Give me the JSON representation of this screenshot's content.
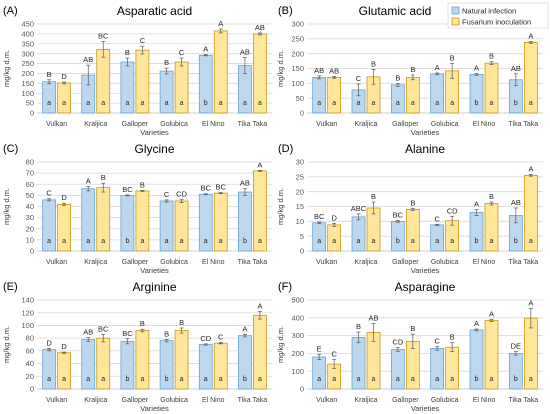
{
  "legend": {
    "entries": [
      {
        "name": "Natural infection",
        "color": "#BDD7EE",
        "border": "#5B9BD5"
      },
      {
        "name": "Fusarium inoculation",
        "color": "#FFE699",
        "border": "#BF9000"
      }
    ]
  },
  "chart_data": [
    {
      "panel_label": "(A)",
      "type": "bar",
      "title": "Asparatic acid",
      "xlabel": "Varieties",
      "ylabel": "mg/kg d.m.",
      "ylim": [
        0,
        450
      ],
      "yticks": [
        0,
        50,
        100,
        150,
        200,
        250,
        300,
        350,
        400,
        450
      ],
      "grid": true,
      "categories": [
        "Vulkan",
        "Kraljica",
        "Galloper",
        "Golubica",
        "El Nino",
        "Tika Taka"
      ],
      "series": [
        {
          "values": [
            158,
            192,
            258,
            212,
            292,
            240
          ],
          "errors": [
            10,
            50,
            20,
            15,
            3,
            40
          ],
          "letters_upper": [
            "B",
            "AB",
            "B",
            "B",
            "A",
            "AB"
          ],
          "letters_lower": [
            "a",
            "a",
            "a",
            "a",
            "b",
            "a"
          ]
        },
        {
          "values": [
            152,
            322,
            318,
            258,
            415,
            400
          ],
          "errors": [
            5,
            40,
            20,
            20,
            10,
            5
          ],
          "letters_upper": [
            "D",
            "BC",
            "C",
            "C",
            "A",
            "AB"
          ],
          "letters_lower": [
            "a",
            "a",
            "a",
            "a",
            "a",
            "a"
          ]
        }
      ]
    },
    {
      "panel_label": "(B)",
      "type": "bar",
      "title": "Glutamic acid",
      "xlabel": "Varieties",
      "ylabel": "mg/kg d.m.",
      "ylim": [
        0,
        300
      ],
      "yticks": [
        0,
        50,
        100,
        150,
        200,
        250,
        300
      ],
      "grid": true,
      "categories": [
        "Vulkan",
        "Kraljica",
        "Galloper",
        "Golubica",
        "El Nino",
        "Tika Taka"
      ],
      "series": [
        {
          "values": [
            120,
            78,
            95,
            132,
            130,
            112
          ],
          "errors": [
            5,
            20,
            5,
            3,
            3,
            20
          ],
          "letters_upper": [
            "AB",
            "C",
            "B",
            "A",
            "A",
            "AB"
          ],
          "letters_lower": [
            "a",
            "a",
            "a",
            "a",
            "b",
            "b"
          ]
        },
        {
          "values": [
            120,
            122,
            120,
            142,
            168,
            238
          ],
          "errors": [
            3,
            25,
            8,
            25,
            5,
            3
          ],
          "letters_upper": [
            "AB",
            "B",
            "B",
            "B",
            "B",
            "A"
          ],
          "letters_lower": [
            "a",
            "a",
            "a",
            "a",
            "a",
            "a"
          ]
        }
      ]
    },
    {
      "panel_label": "(C)",
      "type": "bar",
      "title": "Glycine",
      "xlabel": "Varieties",
      "ylabel": "mg/kg d.m.",
      "ylim": [
        0,
        80
      ],
      "yticks": [
        0,
        10,
        20,
        30,
        40,
        50,
        60,
        70,
        80
      ],
      "grid": true,
      "categories": [
        "Vulkan",
        "Kraljica",
        "Galloper",
        "Golubica",
        "El Nino",
        "Tika Taka"
      ],
      "series": [
        {
          "values": [
            46,
            56,
            50,
            45,
            51,
            53
          ],
          "errors": [
            1,
            2,
            0.5,
            1,
            0.5,
            3
          ],
          "letters_upper": [
            "C",
            "A",
            "BC",
            "C",
            "BC",
            "AB"
          ],
          "letters_lower": [
            "a",
            "a",
            "b",
            "a",
            "a",
            "b"
          ]
        },
        {
          "values": [
            42,
            57,
            54,
            45,
            52,
            72
          ],
          "errors": [
            1,
            4,
            0.5,
            1.5,
            0.5,
            0.5
          ],
          "letters_upper": [
            "D",
            "B",
            "B",
            "CD",
            "BC",
            "A"
          ],
          "letters_lower": [
            "a",
            "a",
            "a",
            "a",
            "a",
            "a"
          ]
        }
      ]
    },
    {
      "panel_label": "(D)",
      "type": "bar",
      "title": "Alanine",
      "xlabel": "Varieties",
      "ylabel": "mg/kg d.m.",
      "ylim": [
        0,
        30
      ],
      "yticks": [
        0,
        5,
        10,
        15,
        20,
        25,
        30
      ],
      "grid": true,
      "categories": [
        "Vulkan",
        "Kraljica",
        "Galloper",
        "Golubica",
        "El Nino",
        "Tika Taka"
      ],
      "series": [
        {
          "values": [
            9.5,
            11.5,
            10,
            8.8,
            13,
            12
          ],
          "errors": [
            0.3,
            1,
            0.3,
            0.2,
            1,
            2.5
          ],
          "letters_upper": [
            "BC",
            "ABC",
            "BC",
            "C",
            "A",
            "AB"
          ],
          "letters_lower": [
            "a",
            "a",
            "b",
            "a",
            "b",
            "b"
          ]
        },
        {
          "values": [
            8.8,
            14.5,
            14,
            10.2,
            16,
            25.5
          ],
          "errors": [
            0.5,
            2,
            0.3,
            1.5,
            0.5,
            0.3
          ],
          "letters_upper": [
            "D",
            "B",
            "B",
            "CD",
            "B",
            "A"
          ],
          "letters_lower": [
            "a",
            "a",
            "a",
            "a",
            "a",
            "a"
          ]
        }
      ]
    },
    {
      "panel_label": "(E)",
      "type": "bar",
      "title": "Arginine",
      "xlabel": "Varieties",
      "ylabel": "mg/kg d.m.",
      "ylim": [
        0,
        140
      ],
      "yticks": [
        0,
        20,
        40,
        60,
        80,
        100,
        120,
        140
      ],
      "grid": true,
      "categories": [
        "Vulkan",
        "Kraljica",
        "Galloper",
        "Golubica",
        "El Nino",
        "Tika Taka"
      ],
      "series": [
        {
          "values": [
            62,
            78,
            75,
            76,
            70,
            84
          ],
          "errors": [
            2,
            3,
            4,
            2,
            1,
            2
          ],
          "letters_upper": [
            "D",
            "AB",
            "BC",
            "B",
            "CD",
            "A"
          ],
          "letters_lower": [
            "a",
            "a",
            "b",
            "b",
            "a",
            "b"
          ]
        },
        {
          "values": [
            57,
            80,
            92,
            92,
            72,
            116
          ],
          "errors": [
            1,
            6,
            2,
            4,
            1,
            6
          ],
          "letters_upper": [
            "D",
            "BC",
            "B",
            "B",
            "C",
            "A"
          ],
          "letters_lower": [
            "a",
            "a",
            "a",
            "a",
            "a",
            "a"
          ]
        }
      ]
    },
    {
      "panel_label": "(F)",
      "type": "bar",
      "title": "Asparagine",
      "xlabel": "Varieties",
      "ylabel": "mg/kg d.m.",
      "ylim": [
        0,
        500
      ],
      "yticks": [
        0,
        100,
        200,
        300,
        400,
        500
      ],
      "grid": true,
      "categories": [
        "Vulkan",
        "Kraljica",
        "Galloper",
        "Golubica",
        "El Nino",
        "Tika Taka"
      ],
      "series": [
        {
          "values": [
            180,
            290,
            222,
            228,
            332,
            200
          ],
          "errors": [
            15,
            30,
            10,
            10,
            5,
            10
          ],
          "letters_upper": [
            "E",
            "B",
            "CD",
            "C",
            "A",
            "DE"
          ],
          "letters_lower": [
            "a",
            "a",
            "a",
            "a",
            "b",
            "b"
          ]
        },
        {
          "values": [
            140,
            318,
            268,
            235,
            385,
            398
          ],
          "errors": [
            25,
            50,
            40,
            25,
            5,
            55
          ],
          "letters_upper": [
            "C",
            "AB",
            "B",
            "B",
            "A",
            "A"
          ],
          "letters_lower": [
            "a",
            "a",
            "a",
            "a",
            "a",
            "a"
          ]
        }
      ]
    }
  ]
}
